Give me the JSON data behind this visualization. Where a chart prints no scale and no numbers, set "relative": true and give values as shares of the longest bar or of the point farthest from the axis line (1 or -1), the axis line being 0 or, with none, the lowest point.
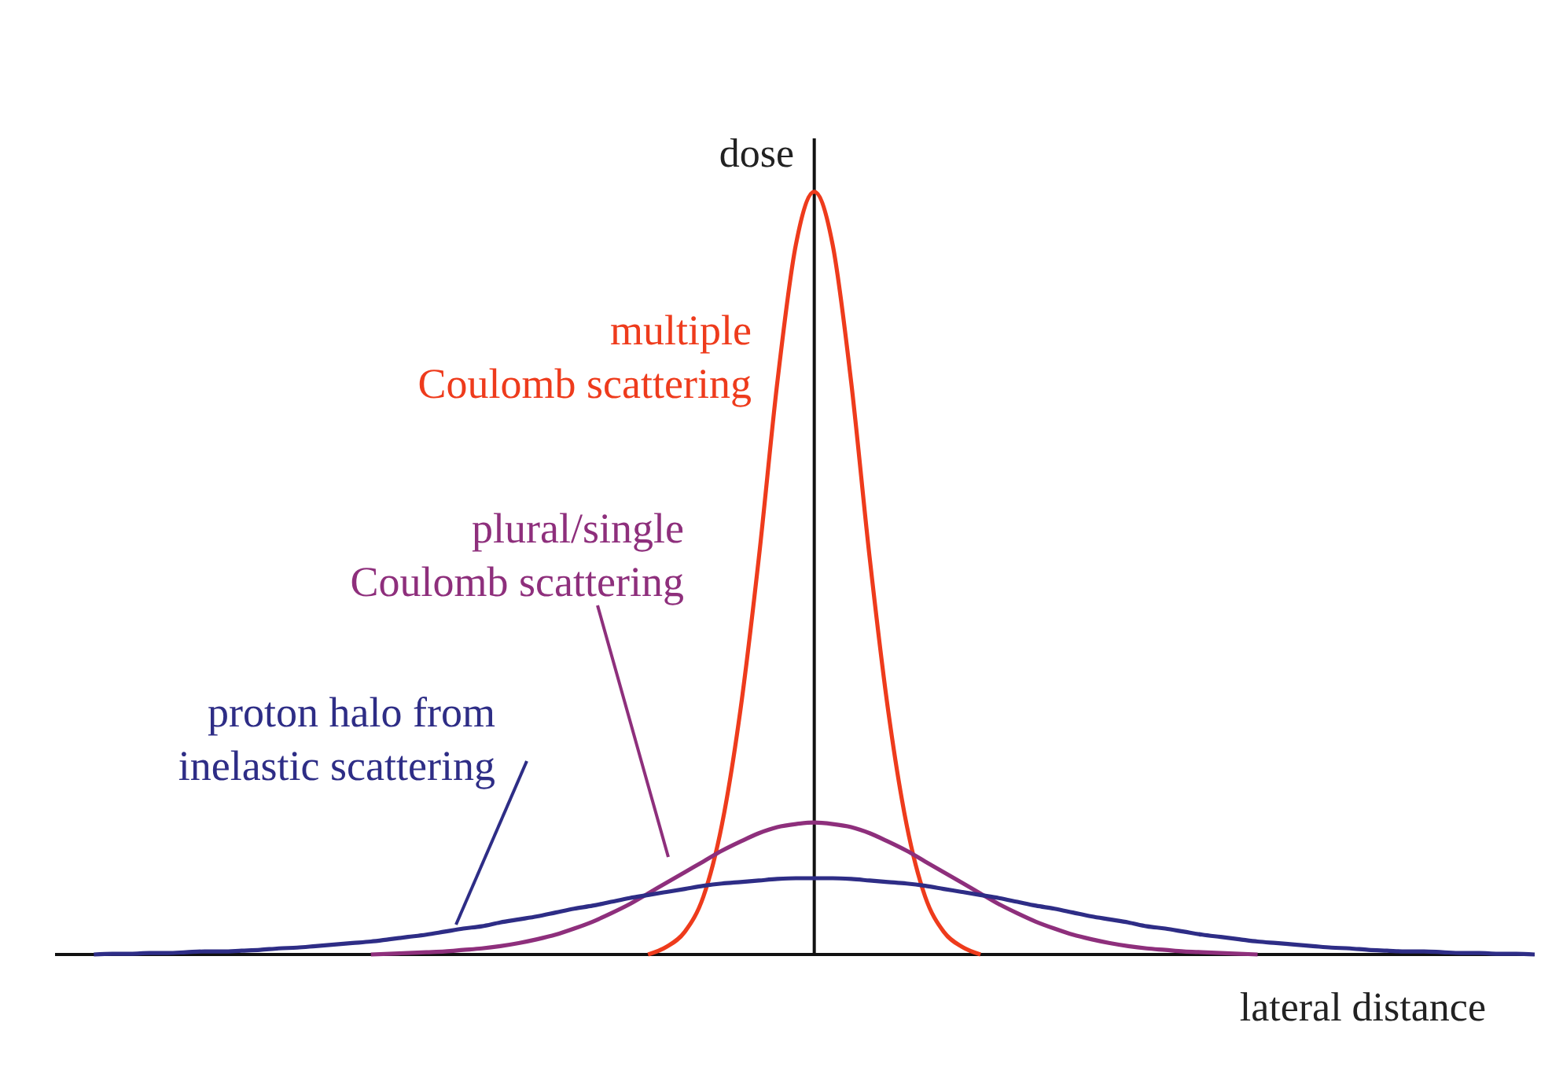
{
  "chart_data": {
    "type": "line",
    "relative": true,
    "xlabel": "lateral distance",
    "ylabel": "dose",
    "marker": "none",
    "line_style": "solid",
    "tick_labels": false,
    "categories": [
      null,
      null,
      null,
      null,
      null,
      null,
      null,
      null,
      null,
      null,
      null,
      null,
      null,
      null,
      null,
      null,
      null,
      null,
      null,
      null,
      null,
      null,
      null,
      null,
      null,
      null,
      null,
      null,
      null,
      null,
      null,
      null,
      null,
      null,
      null,
      null,
      null,
      null,
      null,
      null,
      null,
      null,
      null,
      null,
      null,
      null,
      null,
      null,
      null,
      null,
      null,
      null,
      null,
      null,
      null,
      null,
      null,
      null,
      null,
      null,
      null,
      null,
      null,
      null,
      null,
      null,
      null,
      null,
      null,
      null,
      null,
      null,
      null,
      null,
      null,
      null,
      null,
      null,
      null,
      null,
      null
    ],
    "series": [
      {
        "name": "multiple\nCoulomb scattering",
        "color": "#ee3b1c",
        "values": [
          null,
          null,
          null,
          null,
          null,
          null,
          null,
          null,
          null,
          null,
          null,
          null,
          null,
          null,
          null,
          null,
          null,
          null,
          null,
          null,
          null,
          null,
          null,
          null,
          null,
          null,
          null,
          null,
          null,
          null,
          null,
          null,
          0,
          0.01,
          0.03,
          0.076,
          0.17,
          0.32,
          0.52,
          0.75,
          0.93,
          1,
          0.93,
          0.75,
          0.52,
          0.32,
          0.17,
          0.076,
          0.03,
          0.01,
          0,
          null,
          null,
          null,
          null,
          null,
          null,
          null,
          null,
          null,
          null,
          null,
          null,
          null,
          null,
          null,
          null,
          null,
          null,
          null,
          null,
          null,
          null,
          null,
          null,
          null,
          null,
          null,
          null,
          null,
          null
        ]
      },
      {
        "name": "plural/single\nCoulomb scattering",
        "color": "#8e2f7c",
        "values": [
          null,
          null,
          null,
          null,
          null,
          null,
          null,
          null,
          null,
          null,
          null,
          null,
          null,
          null,
          null,
          null,
          null,
          0,
          0.001,
          0.002,
          0.003,
          0.004,
          0.006,
          0.008,
          0.011,
          0.015,
          0.02,
          0.026,
          0.034,
          0.043,
          0.054,
          0.066,
          0.08,
          0.094,
          0.108,
          0.122,
          0.136,
          0.148,
          0.159,
          0.167,
          0.171,
          0.173,
          0.171,
          0.167,
          0.159,
          0.148,
          0.136,
          0.122,
          0.108,
          0.094,
          0.08,
          0.066,
          0.054,
          0.043,
          0.034,
          0.026,
          0.02,
          0.015,
          0.011,
          0.008,
          0.006,
          0.004,
          0.003,
          0.002,
          0.001,
          0,
          null,
          null,
          null,
          null,
          null,
          null,
          null,
          null,
          null,
          null,
          null,
          null,
          null,
          null,
          null
        ]
      },
      {
        "name": "proton halo from\ninelastic scattering",
        "color": "#2e2d86",
        "values": [
          null,
          null,
          0,
          0.001,
          0.001,
          0.002,
          0.002,
          0.003,
          0.004,
          0.004,
          0.005,
          0.006,
          0.008,
          0.009,
          0.011,
          0.013,
          0.015,
          0.017,
          0.02,
          0.023,
          0.026,
          0.03,
          0.034,
          0.037,
          0.042,
          0.046,
          0.05,
          0.055,
          0.06,
          0.064,
          0.069,
          0.074,
          0.078,
          0.082,
          0.086,
          0.09,
          0.093,
          0.095,
          0.097,
          0.099,
          0.1,
          0.1,
          0.1,
          0.099,
          0.097,
          0.095,
          0.093,
          0.09,
          0.086,
          0.082,
          0.078,
          0.074,
          0.069,
          0.064,
          0.06,
          0.055,
          0.05,
          0.046,
          0.042,
          0.037,
          0.034,
          0.03,
          0.026,
          0.023,
          0.02,
          0.017,
          0.015,
          0.013,
          0.011,
          0.009,
          0.008,
          0.006,
          0.005,
          0.004,
          0.004,
          0.003,
          0.002,
          0.002,
          0.001,
          0.001,
          0
        ]
      }
    ]
  }
}
